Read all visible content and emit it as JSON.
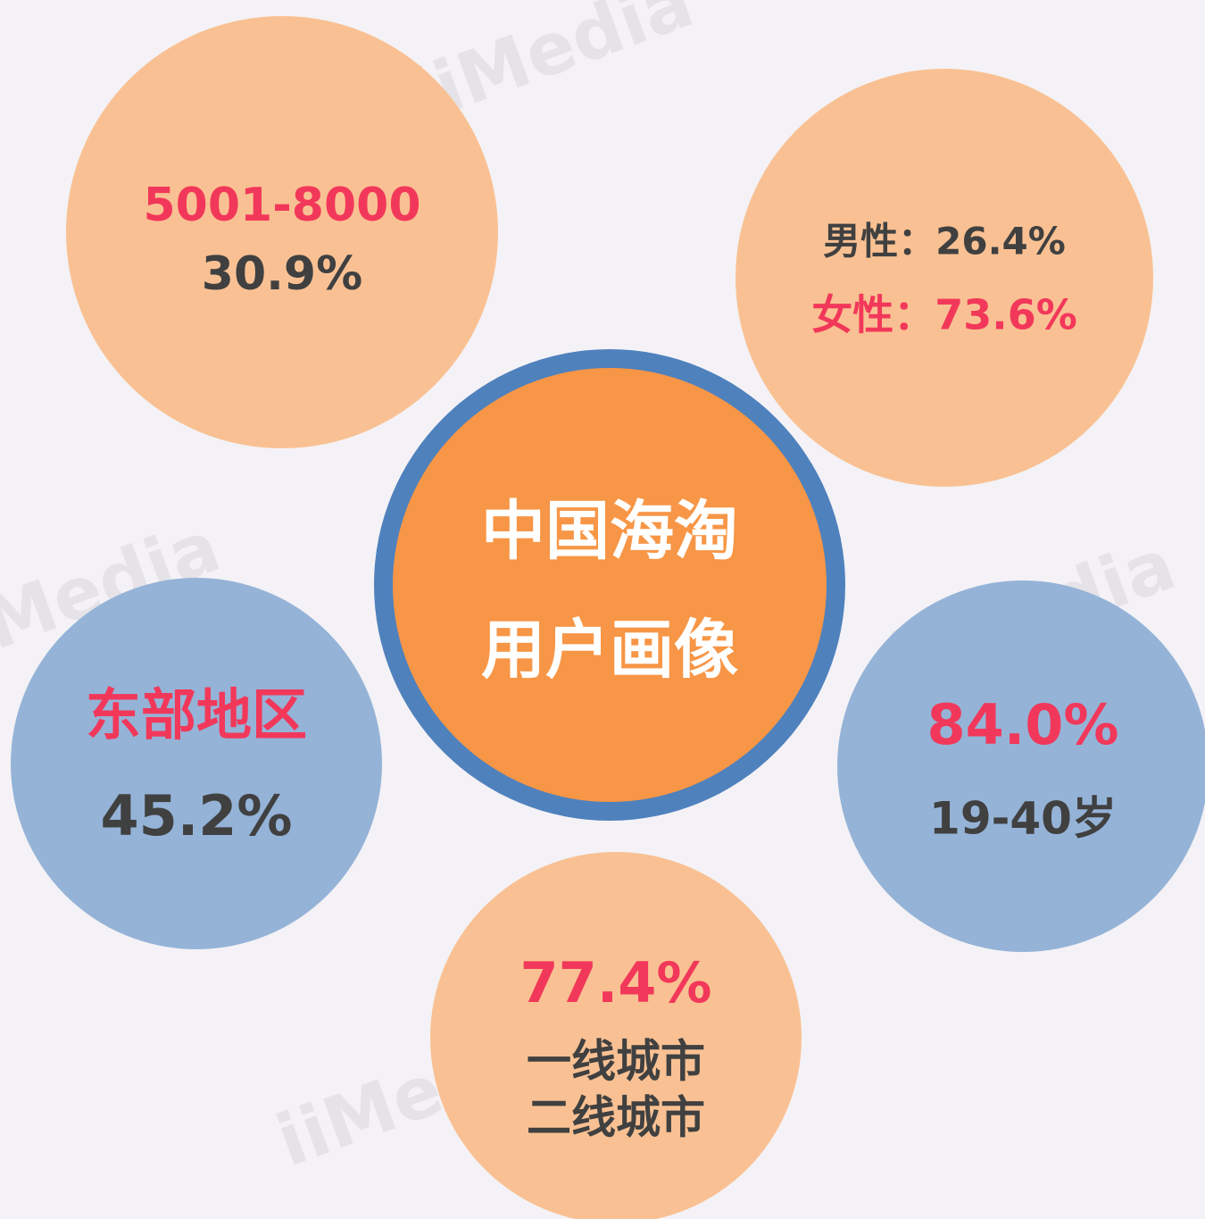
{
  "center": {
    "lines": [
      "中国海淘",
      "用户画像"
    ]
  },
  "bubbles": [
    {
      "lines": [
        "5001-8000",
        "30.9%"
      ]
    },
    {
      "lines": [
        "男性：26.4%",
        "女性：73.6%"
      ]
    },
    {
      "lines": [
        "东部地区",
        "45.2%"
      ]
    },
    {
      "lines": [
        "84.0%",
        "19-40岁"
      ]
    },
    {
      "lines": [
        "77.4%",
        "一线城市",
        "二线城市"
      ]
    }
  ],
  "watermark": "iiMedia"
}
